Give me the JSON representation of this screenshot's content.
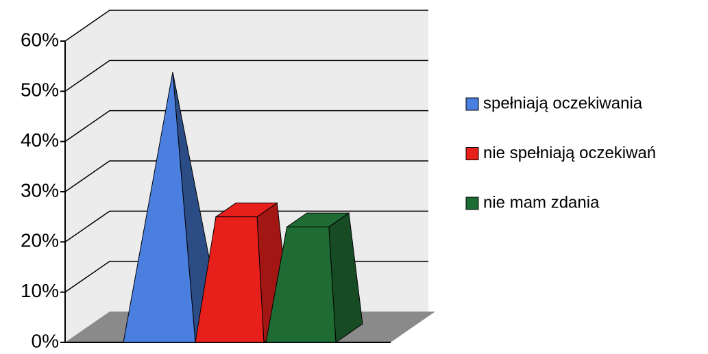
{
  "chart_data": {
    "type": "pyramid3d",
    "series": [
      {
        "name": "spełniają oczekiwania",
        "color": "#4a7fe0",
        "values": [
          52
        ]
      },
      {
        "name": "nie spełniają oczekiwań",
        "color": "#e8201c",
        "values": [
          25
        ]
      },
      {
        "name": "nie mam zdania",
        "color": "#1f6b34",
        "values": [
          23
        ]
      }
    ],
    "ylim": [
      0,
      60
    ],
    "yticks": [
      {
        "value": 0,
        "label": "0%"
      },
      {
        "value": 10,
        "label": "10%"
      },
      {
        "value": 20,
        "label": "20%"
      },
      {
        "value": 30,
        "label": "30%"
      },
      {
        "value": 40,
        "label": "40%"
      },
      {
        "value": 50,
        "label": "50%"
      },
      {
        "value": 60,
        "label": "60%"
      }
    ],
    "grid": true,
    "legend": "right"
  }
}
